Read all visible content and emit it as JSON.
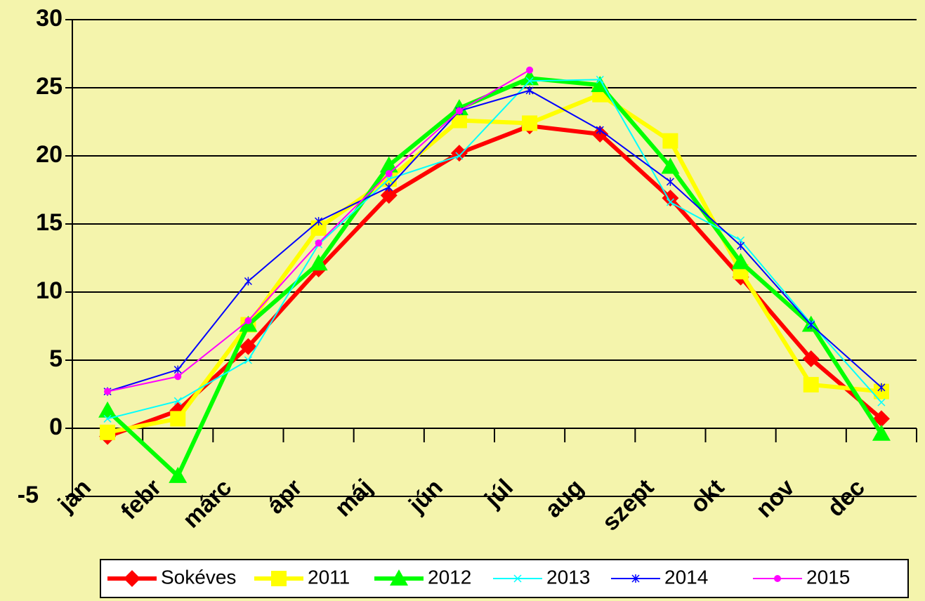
{
  "chart_data": {
    "type": "line",
    "categories": [
      "jan",
      "febr",
      "márc",
      "ápr",
      "máj",
      "jún",
      "júl",
      "aug",
      "szept",
      "okt",
      "nov",
      "dec"
    ],
    "ylim": [
      -5,
      30
    ],
    "yticks": [
      -5,
      0,
      5,
      10,
      15,
      20,
      25,
      30
    ],
    "grid": true,
    "legend": "bottom",
    "series": [
      {
        "name": "Sokéves",
        "color": "#ff0000",
        "marker": "diamond",
        "values": [
          -0.6,
          1.3,
          6.0,
          11.7,
          17.1,
          20.2,
          22.2,
          21.6,
          16.9,
          11.1,
          5.1,
          0.7
        ]
      },
      {
        "name": "2011",
        "color": "#ffff00",
        "marker": "square",
        "values": [
          -0.3,
          0.7,
          7.6,
          14.7,
          18.3,
          22.6,
          22.4,
          24.5,
          21.1,
          11.5,
          3.2,
          2.7
        ]
      },
      {
        "name": "2012",
        "color": "#00ff00",
        "marker": "triangle",
        "values": [
          1.3,
          -3.5,
          7.6,
          12.1,
          19.3,
          23.5,
          25.7,
          25.2,
          19.2,
          12.2,
          7.6,
          -0.4
        ]
      },
      {
        "name": "2013",
        "color": "#00ffff",
        "marker": "x",
        "values": [
          0.7,
          2.0,
          5.0,
          13.5,
          18.3,
          20.0,
          25.5,
          25.6,
          16.6,
          13.8,
          7.7,
          1.9
        ]
      },
      {
        "name": "2014",
        "color": "#0000ff",
        "marker": "star",
        "values": [
          2.7,
          4.3,
          10.8,
          15.2,
          17.7,
          23.3,
          24.8,
          21.9,
          18.1,
          13.4,
          7.6,
          3.0
        ]
      },
      {
        "name": "2015",
        "color": "#ff00ff",
        "marker": "circle",
        "values": [
          2.7,
          3.8,
          7.9,
          13.6,
          18.7,
          23.3,
          26.3,
          null,
          null,
          null,
          null,
          null
        ]
      }
    ]
  }
}
